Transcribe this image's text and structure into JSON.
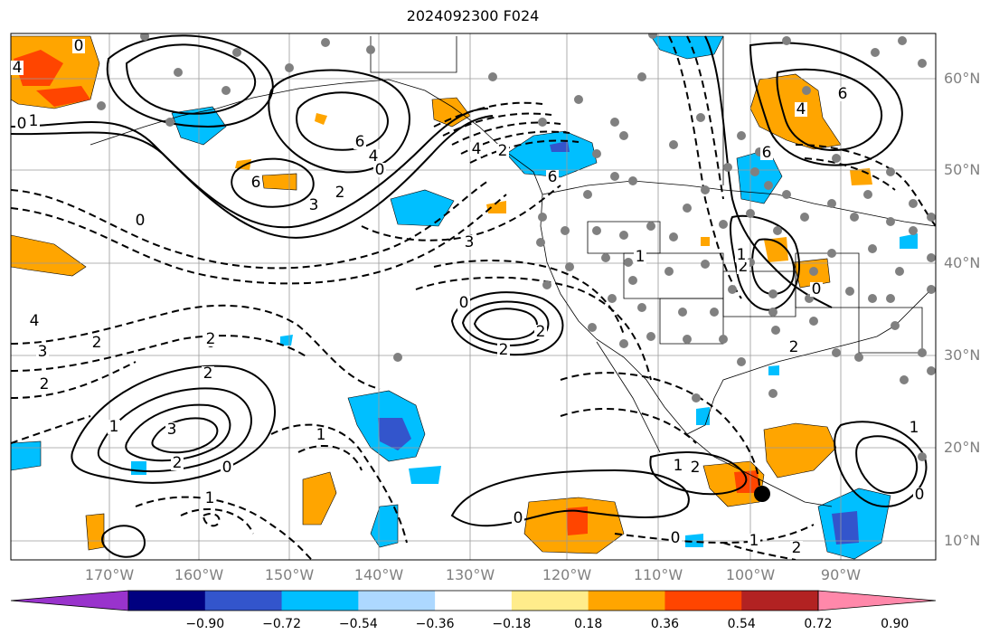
{
  "title": "2024092300 F024",
  "lon_labels": [
    "170°W",
    "160°W",
    "150°W",
    "140°W",
    "130°W",
    "120°W",
    "110°W",
    "100°W",
    "90°W"
  ],
  "lat_labels": [
    "60°N",
    "50°N",
    "40°N",
    "30°N",
    "20°N",
    "10°N"
  ],
  "colorbar": {
    "colors": [
      "#9933cc",
      "#000080",
      "#3355cc",
      "#00bfff",
      "#add8ff",
      "#ffffff",
      "#ffec8b",
      "#ffa500",
      "#ff4500",
      "#b22222",
      "#ff88aa"
    ],
    "tick_labels": [
      "−0.90",
      "−0.72",
      "−0.54",
      "−0.36",
      "−0.18",
      "0.18",
      "0.36",
      "0.54",
      "0.72",
      "0.90"
    ]
  },
  "contour_labels": [
    {
      "text": "0"
    },
    {
      "text": "1"
    },
    {
      "text": "4"
    },
    {
      "text": "0"
    },
    {
      "text": "6"
    },
    {
      "text": "4"
    },
    {
      "text": "6"
    },
    {
      "text": "3"
    },
    {
      "text": "2"
    },
    {
      "text": "0"
    },
    {
      "text": "6"
    },
    {
      "text": "4"
    },
    {
      "text": "2"
    },
    {
      "text": "6"
    },
    {
      "text": "4"
    },
    {
      "text": "6"
    },
    {
      "text": "3"
    },
    {
      "text": "0"
    },
    {
      "text": "2"
    },
    {
      "text": "4"
    },
    {
      "text": "3"
    },
    {
      "text": "2"
    },
    {
      "text": "2"
    },
    {
      "text": "0"
    },
    {
      "text": "2"
    },
    {
      "text": "3"
    },
    {
      "text": "1"
    },
    {
      "text": "2"
    },
    {
      "text": "0"
    },
    {
      "text": "1"
    },
    {
      "text": "1"
    },
    {
      "text": "2"
    },
    {
      "text": "1"
    },
    {
      "text": "0"
    },
    {
      "text": "0"
    },
    {
      "text": "1"
    },
    {
      "text": "2"
    },
    {
      "text": "2"
    },
    {
      "text": "0"
    },
    {
      "text": "1"
    },
    {
      "text": "1"
    },
    {
      "text": "0"
    },
    {
      "text": "0"
    },
    {
      "text": "2"
    },
    {
      "text": "2"
    },
    {
      "text": "1"
    },
    {
      "text": "2"
    }
  ],
  "colors": {
    "land_dot": "#808080",
    "marker": "#000000",
    "axis_label": "#808080"
  }
}
